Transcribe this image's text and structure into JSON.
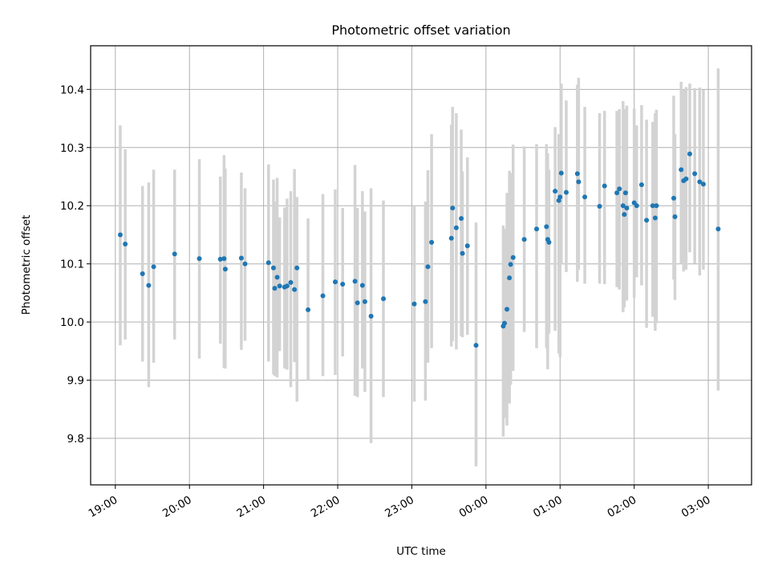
{
  "chart_data": {
    "type": "scatter",
    "title": "Photometric offset variation",
    "xlabel": "UTC time",
    "ylabel": "Photometric offset",
    "xlim": [
      "18:40",
      "03:35"
    ],
    "ylim": [
      9.72,
      10.475
    ],
    "grid": true,
    "x_ticks": [
      "19:00",
      "20:00",
      "21:00",
      "22:00",
      "23:00",
      "00:00",
      "01:00",
      "02:00",
      "03:00"
    ],
    "y_ticks": [
      "9.8",
      "9.9",
      "10.0",
      "10.1",
      "10.2",
      "10.3",
      "10.4"
    ],
    "colors": {
      "marker": "#1f77b4",
      "errorbar": "#d3d3d3"
    },
    "series": [
      {
        "x": [
          "19:04",
          "19:08",
          "19:22",
          "19:27",
          "19:31",
          "19:48",
          "20:08",
          "20:25",
          "20:28",
          "20:29",
          "20:42",
          "20:45",
          "21:04",
          "21:08",
          "21:09",
          "21:11",
          "21:13",
          "21:17",
          "21:19",
          "21:22",
          "21:25",
          "21:27",
          "21:36",
          "21:48",
          "21:58",
          "22:04",
          "22:14",
          "22:16",
          "22:20",
          "22:22",
          "22:27",
          "22:37",
          "23:02",
          "23:11",
          "23:13",
          "23:16",
          "23:32",
          "23:33",
          "23:36",
          "23:40",
          "23:41",
          "23:45",
          "23:52",
          "00:14",
          "00:15",
          "00:17",
          "00:19",
          "00:20",
          "00:22",
          "00:31",
          "00:41",
          "00:49",
          "00:50",
          "00:51",
          "00:56",
          "00:59",
          "01:00",
          "01:01",
          "01:05",
          "01:14",
          "01:15",
          "01:20",
          "01:32",
          "01:36",
          "01:46",
          "01:48",
          "01:51",
          "01:52",
          "01:53",
          "01:54",
          "02:00",
          "02:02",
          "02:06",
          "02:10",
          "02:15",
          "02:17",
          "02:18",
          "02:32",
          "02:33",
          "02:38",
          "02:40",
          "02:42",
          "02:45",
          "02:49",
          "02:53",
          "02:56",
          "03:08"
        ],
        "y": [
          10.15,
          10.134,
          10.083,
          10.063,
          10.095,
          10.117,
          10.109,
          10.108,
          10.109,
          10.091,
          10.11,
          10.1,
          10.102,
          10.093,
          10.058,
          10.077,
          10.062,
          10.06,
          10.062,
          10.068,
          10.056,
          10.093,
          10.021,
          10.045,
          10.069,
          10.065,
          10.07,
          10.033,
          10.063,
          10.035,
          10.01,
          10.04,
          10.031,
          10.035,
          10.095,
          10.137,
          10.144,
          10.196,
          10.162,
          10.178,
          10.118,
          10.131,
          9.96,
          9.993,
          9.998,
          10.022,
          10.076,
          10.099,
          10.111,
          10.142,
          10.16,
          10.164,
          10.142,
          10.137,
          10.225,
          10.209,
          10.215,
          10.256,
          10.223,
          10.255,
          10.241,
          10.215,
          10.199,
          10.234,
          10.222,
          10.229,
          10.2,
          10.185,
          10.222,
          10.196,
          10.205,
          10.2,
          10.236,
          10.175,
          10.2,
          10.179,
          10.2,
          10.213,
          10.181,
          10.262,
          10.243,
          10.246,
          10.289,
          10.255,
          10.241,
          10.237,
          10.16
        ],
        "yerr_low": [
          9.96,
          9.97,
          9.932,
          9.888,
          9.93,
          9.97,
          9.937,
          9.963,
          9.921,
          9.92,
          9.952,
          9.968,
          9.932,
          9.91,
          9.907,
          9.905,
          9.95,
          9.92,
          9.918,
          9.888,
          9.931,
          9.863,
          9.9,
          9.907,
          9.909,
          9.941,
          9.873,
          9.871,
          9.92,
          9.88,
          9.792,
          9.871,
          9.863,
          9.865,
          9.93,
          9.955,
          9.958,
          9.967,
          9.953,
          9.976,
          9.974,
          9.978,
          9.752,
          9.803,
          9.835,
          9.822,
          9.86,
          9.892,
          9.916,
          9.983,
          9.955,
          9.955,
          9.919,
          9.98,
          9.985,
          9.946,
          9.94,
          10.1,
          10.086,
          10.069,
          10.09,
          10.066,
          10.066,
          10.065,
          10.06,
          10.056,
          10.017,
          10.025,
          10.082,
          10.037,
          10.041,
          10.077,
          10.063,
          9.99,
          10.009,
          9.985,
          9.998,
          10.073,
          10.038,
          10.1,
          10.087,
          10.09,
          10.12,
          10.101,
          10.08,
          10.09,
          9.882
        ],
        "yerr_high": [
          10.338,
          10.297,
          10.234,
          10.24,
          10.262,
          10.262,
          10.28,
          10.25,
          10.287,
          10.264,
          10.257,
          10.23,
          10.271,
          10.245,
          10.207,
          10.248,
          10.18,
          10.197,
          10.212,
          10.225,
          10.263,
          10.215,
          10.178,
          10.22,
          10.228,
          10.196,
          10.27,
          10.196,
          10.225,
          10.19,
          10.23,
          10.209,
          10.2,
          10.207,
          10.261,
          10.323,
          10.339,
          10.37,
          10.359,
          10.331,
          10.259,
          10.283,
          10.171,
          10.166,
          10.16,
          10.222,
          10.26,
          10.256,
          10.305,
          10.302,
          10.306,
          10.306,
          10.29,
          10.262,
          10.335,
          10.323,
          10.309,
          10.41,
          10.381,
          10.408,
          10.42,
          10.37,
          10.359,
          10.363,
          10.363,
          10.366,
          10.38,
          10.361,
          10.366,
          10.372,
          10.367,
          10.338,
          10.373,
          10.348,
          10.344,
          10.359,
          10.365,
          10.389,
          10.323,
          10.413,
          10.4,
          10.404,
          10.41,
          10.402,
          10.403,
          10.399,
          10.436
        ]
      }
    ]
  }
}
